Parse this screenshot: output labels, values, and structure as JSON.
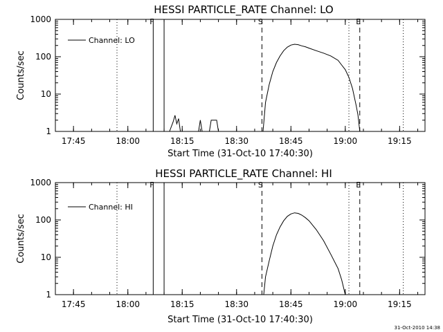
{
  "footer": {
    "timestamp": "31-Oct-2010 14:38"
  },
  "chart_data": [
    {
      "type": "line",
      "title": "HESSI PARTICLE_RATE Channel: LO",
      "xlabel": "Start Time (31-Oct-10 17:40:30)",
      "ylabel": "Counts/sec",
      "yscale": "log",
      "xlim": [
        "17:40",
        "19:22"
      ],
      "ylim": [
        1,
        1000
      ],
      "xticks": [
        "17:45",
        "18:00",
        "18:15",
        "18:30",
        "18:45",
        "19:00",
        "19:15"
      ],
      "yticks": [
        "1",
        "10",
        "100",
        "1000"
      ],
      "legend": {
        "label": "Channel: LO",
        "placement": "top-left"
      },
      "markers": [
        {
          "label": "F",
          "time": "18:07",
          "style": "solid"
        },
        {
          "label": "",
          "time": "18:10",
          "style": "solid"
        },
        {
          "label": "S",
          "time": "18:37",
          "style": "dashed"
        },
        {
          "label": "E",
          "time": "19:04",
          "style": "dashed"
        }
      ],
      "dotted_lines": [
        "17:57",
        "19:01",
        "19:16"
      ],
      "series": [
        {
          "segments": [
            {
              "x": [
                "18:11.5",
                "18:12.5",
                "18:13",
                "18:13.5",
                "18:14",
                "18:14.5"
              ],
              "y": [
                1,
                1.8,
                2.7,
                1.6,
                2.2,
                1
              ]
            },
            {
              "x": [
                "18:19.5",
                "18:20",
                "18:20.5"
              ],
              "y": [
                1,
                2,
                1
              ]
            },
            {
              "x": [
                "18:22.5",
                "18:23",
                "18:24.5",
                "18:25"
              ],
              "y": [
                1,
                2,
                2,
                1
              ]
            },
            {
              "x": [
                "18:37.3",
                "18:38",
                "18:39",
                "18:40",
                "18:41",
                "18:42",
                "18:43",
                "18:44",
                "18:45",
                "18:46",
                "18:47",
                "18:48",
                "18:49",
                "18:50",
                "18:52",
                "18:54",
                "18:56",
                "18:58",
                "18:59",
                "19:00",
                "19:01",
                "19:02",
                "19:03",
                "19:03.5",
                "19:04"
              ],
              "y": [
                1,
                6,
                18,
                40,
                70,
                105,
                145,
                180,
                205,
                215,
                210,
                195,
                185,
                170,
                145,
                125,
                105,
                80,
                60,
                45,
                28,
                14,
                5,
                2.8,
                1
              ]
            }
          ]
        }
      ]
    },
    {
      "type": "line",
      "title": "HESSI PARTICLE_RATE Channel: HI",
      "xlabel": "Start Time (31-Oct-10 17:40:30)",
      "ylabel": "Counts/sec",
      "yscale": "log",
      "xlim": [
        "17:40",
        "19:22"
      ],
      "ylim": [
        1,
        1000
      ],
      "xticks": [
        "17:45",
        "18:00",
        "18:15",
        "18:30",
        "18:45",
        "19:00",
        "19:15"
      ],
      "yticks": [
        "1",
        "10",
        "100",
        "1000"
      ],
      "legend": {
        "label": "Channel: HI",
        "placement": "top-left"
      },
      "markers": [
        {
          "label": "F",
          "time": "18:07",
          "style": "solid"
        },
        {
          "label": "",
          "time": "18:10",
          "style": "solid"
        },
        {
          "label": "S",
          "time": "18:37",
          "style": "dashed"
        },
        {
          "label": "E",
          "time": "19:04",
          "style": "dashed"
        }
      ],
      "dotted_lines": [
        "17:57",
        "19:01",
        "19:16"
      ],
      "series": [
        {
          "segments": [
            {
              "x": [
                "18:37.5",
                "18:38",
                "18:39",
                "18:40",
                "18:41",
                "18:42",
                "18:43",
                "18:44",
                "18:45",
                "18:46",
                "18:47",
                "18:48",
                "18:49",
                "18:50",
                "18:52",
                "18:54",
                "18:56",
                "18:58",
                "18:59",
                "19:00"
              ],
              "y": [
                1,
                3,
                8,
                20,
                40,
                65,
                95,
                125,
                145,
                155,
                150,
                135,
                115,
                95,
                55,
                28,
                12,
                5,
                2.5,
                1
              ]
            }
          ]
        }
      ]
    }
  ]
}
